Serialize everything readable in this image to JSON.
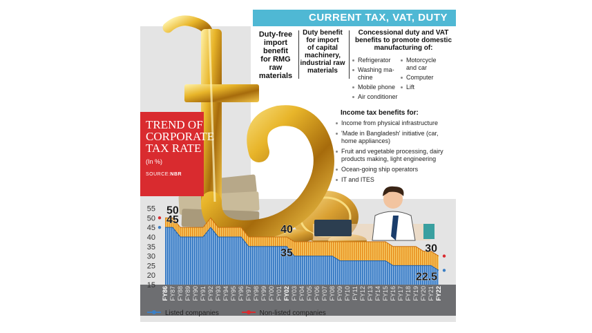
{
  "banner": {
    "title": "CURRENT TAX, VAT, DUTY BENEFITS"
  },
  "benefits": {
    "col1": [
      "Duty-free",
      "import",
      "benefit",
      "for RMG",
      "raw",
      "materials"
    ],
    "col2": [
      "Duty benefit",
      "for import",
      "of capital",
      "machinery,",
      "industrial raw",
      "materials"
    ],
    "col3_heading": [
      "Concessional duty and VAT",
      "benefits to promote domestic",
      "manufacturing of:"
    ],
    "col3_left": [
      "Refrigerator",
      "Washing ma-",
      "chine",
      "Mobile phone",
      "Air conditioner"
    ],
    "col3_right": [
      "Motorcycle",
      "and car",
      "Computer",
      "Lift"
    ],
    "income_tax_heading": "Income tax benefits for:",
    "income_tax_items": [
      "Income from physical infrastructure",
      "'Made in Bangladesh' initiative (car, home appliances)",
      "Fruit and vegetable processing, dairy products making, light engineering",
      "Ocean-going ship operators",
      "IT and ITES"
    ]
  },
  "trend_box": {
    "title_lines": [
      "TREND OF",
      "CORPORATE",
      "TAX RATE"
    ],
    "unit": "(In %)",
    "source_prefix": "SOURCE:",
    "source_name": "NBR"
  },
  "chart_data": {
    "type": "area",
    "title": "TREND OF CORPORATE TAX RATE",
    "unit": "(In %)",
    "x": [
      "FY86",
      "FY87",
      "FY88",
      "FY89",
      "FY90",
      "FY91",
      "FY92",
      "FY93",
      "FY94",
      "FY95",
      "FY96",
      "FY97",
      "FY98",
      "FY99",
      "FY00",
      "FY01",
      "FY02",
      "FY03",
      "FY04",
      "FY05",
      "FY06",
      "FY07",
      "FY08",
      "FY09",
      "FY10",
      "FY11",
      "FY12",
      "FY13",
      "FY14",
      "FY15",
      "FY16",
      "FY17",
      "FY18",
      "FY19",
      "FY20",
      "FY21",
      "FY22"
    ],
    "bold_x": [
      "FY86",
      "FY02",
      "FY22"
    ],
    "series": [
      {
        "name": "Listed companies",
        "color": "#3b7fc4",
        "values": [
          45,
          45,
          40,
          40,
          40,
          40,
          45,
          40,
          40,
          40,
          40,
          35,
          35,
          35,
          35,
          35,
          35,
          30,
          30,
          30,
          30,
          30,
          30,
          27.5,
          27.5,
          27.5,
          27.5,
          27.5,
          27.5,
          27.5,
          25,
          25,
          25,
          25,
          25,
          25,
          22.5
        ]
      },
      {
        "name": "Non-listed companies",
        "color": "#d92b2f",
        "values": [
          50,
          50,
          45,
          45,
          45,
          45,
          50,
          45,
          45,
          45,
          45,
          40,
          40,
          40,
          40,
          40,
          40,
          37.5,
          37.5,
          37.5,
          37.5,
          37.5,
          37.5,
          37.5,
          37.5,
          37.5,
          37.5,
          37.5,
          37.5,
          37.5,
          35,
          35,
          35,
          35,
          32.5,
          32.5,
          30
        ]
      }
    ],
    "y_ticks": [
      15,
      20,
      25,
      30,
      35,
      40,
      45,
      50,
      55
    ],
    "ylim": [
      15,
      57
    ],
    "annotations": [
      {
        "x": "FY86",
        "y": 50,
        "text": "50"
      },
      {
        "x": "FY86",
        "y": 45,
        "text": "45"
      },
      {
        "x": "FY02",
        "y": 40,
        "text": "40"
      },
      {
        "x": "FY02",
        "y": 35,
        "text": "35"
      },
      {
        "x": "FY22",
        "y": 30,
        "text": "30"
      },
      {
        "x": "FY22",
        "y": 22.5,
        "text": "22.5"
      }
    ],
    "legend_placement": "bottom-left"
  },
  "colors": {
    "banner": "#4fb8d4",
    "red": "#d92b2f",
    "blue": "#3b7fc4",
    "orange": "#f4b233",
    "axis_band": "#6d6e71"
  }
}
